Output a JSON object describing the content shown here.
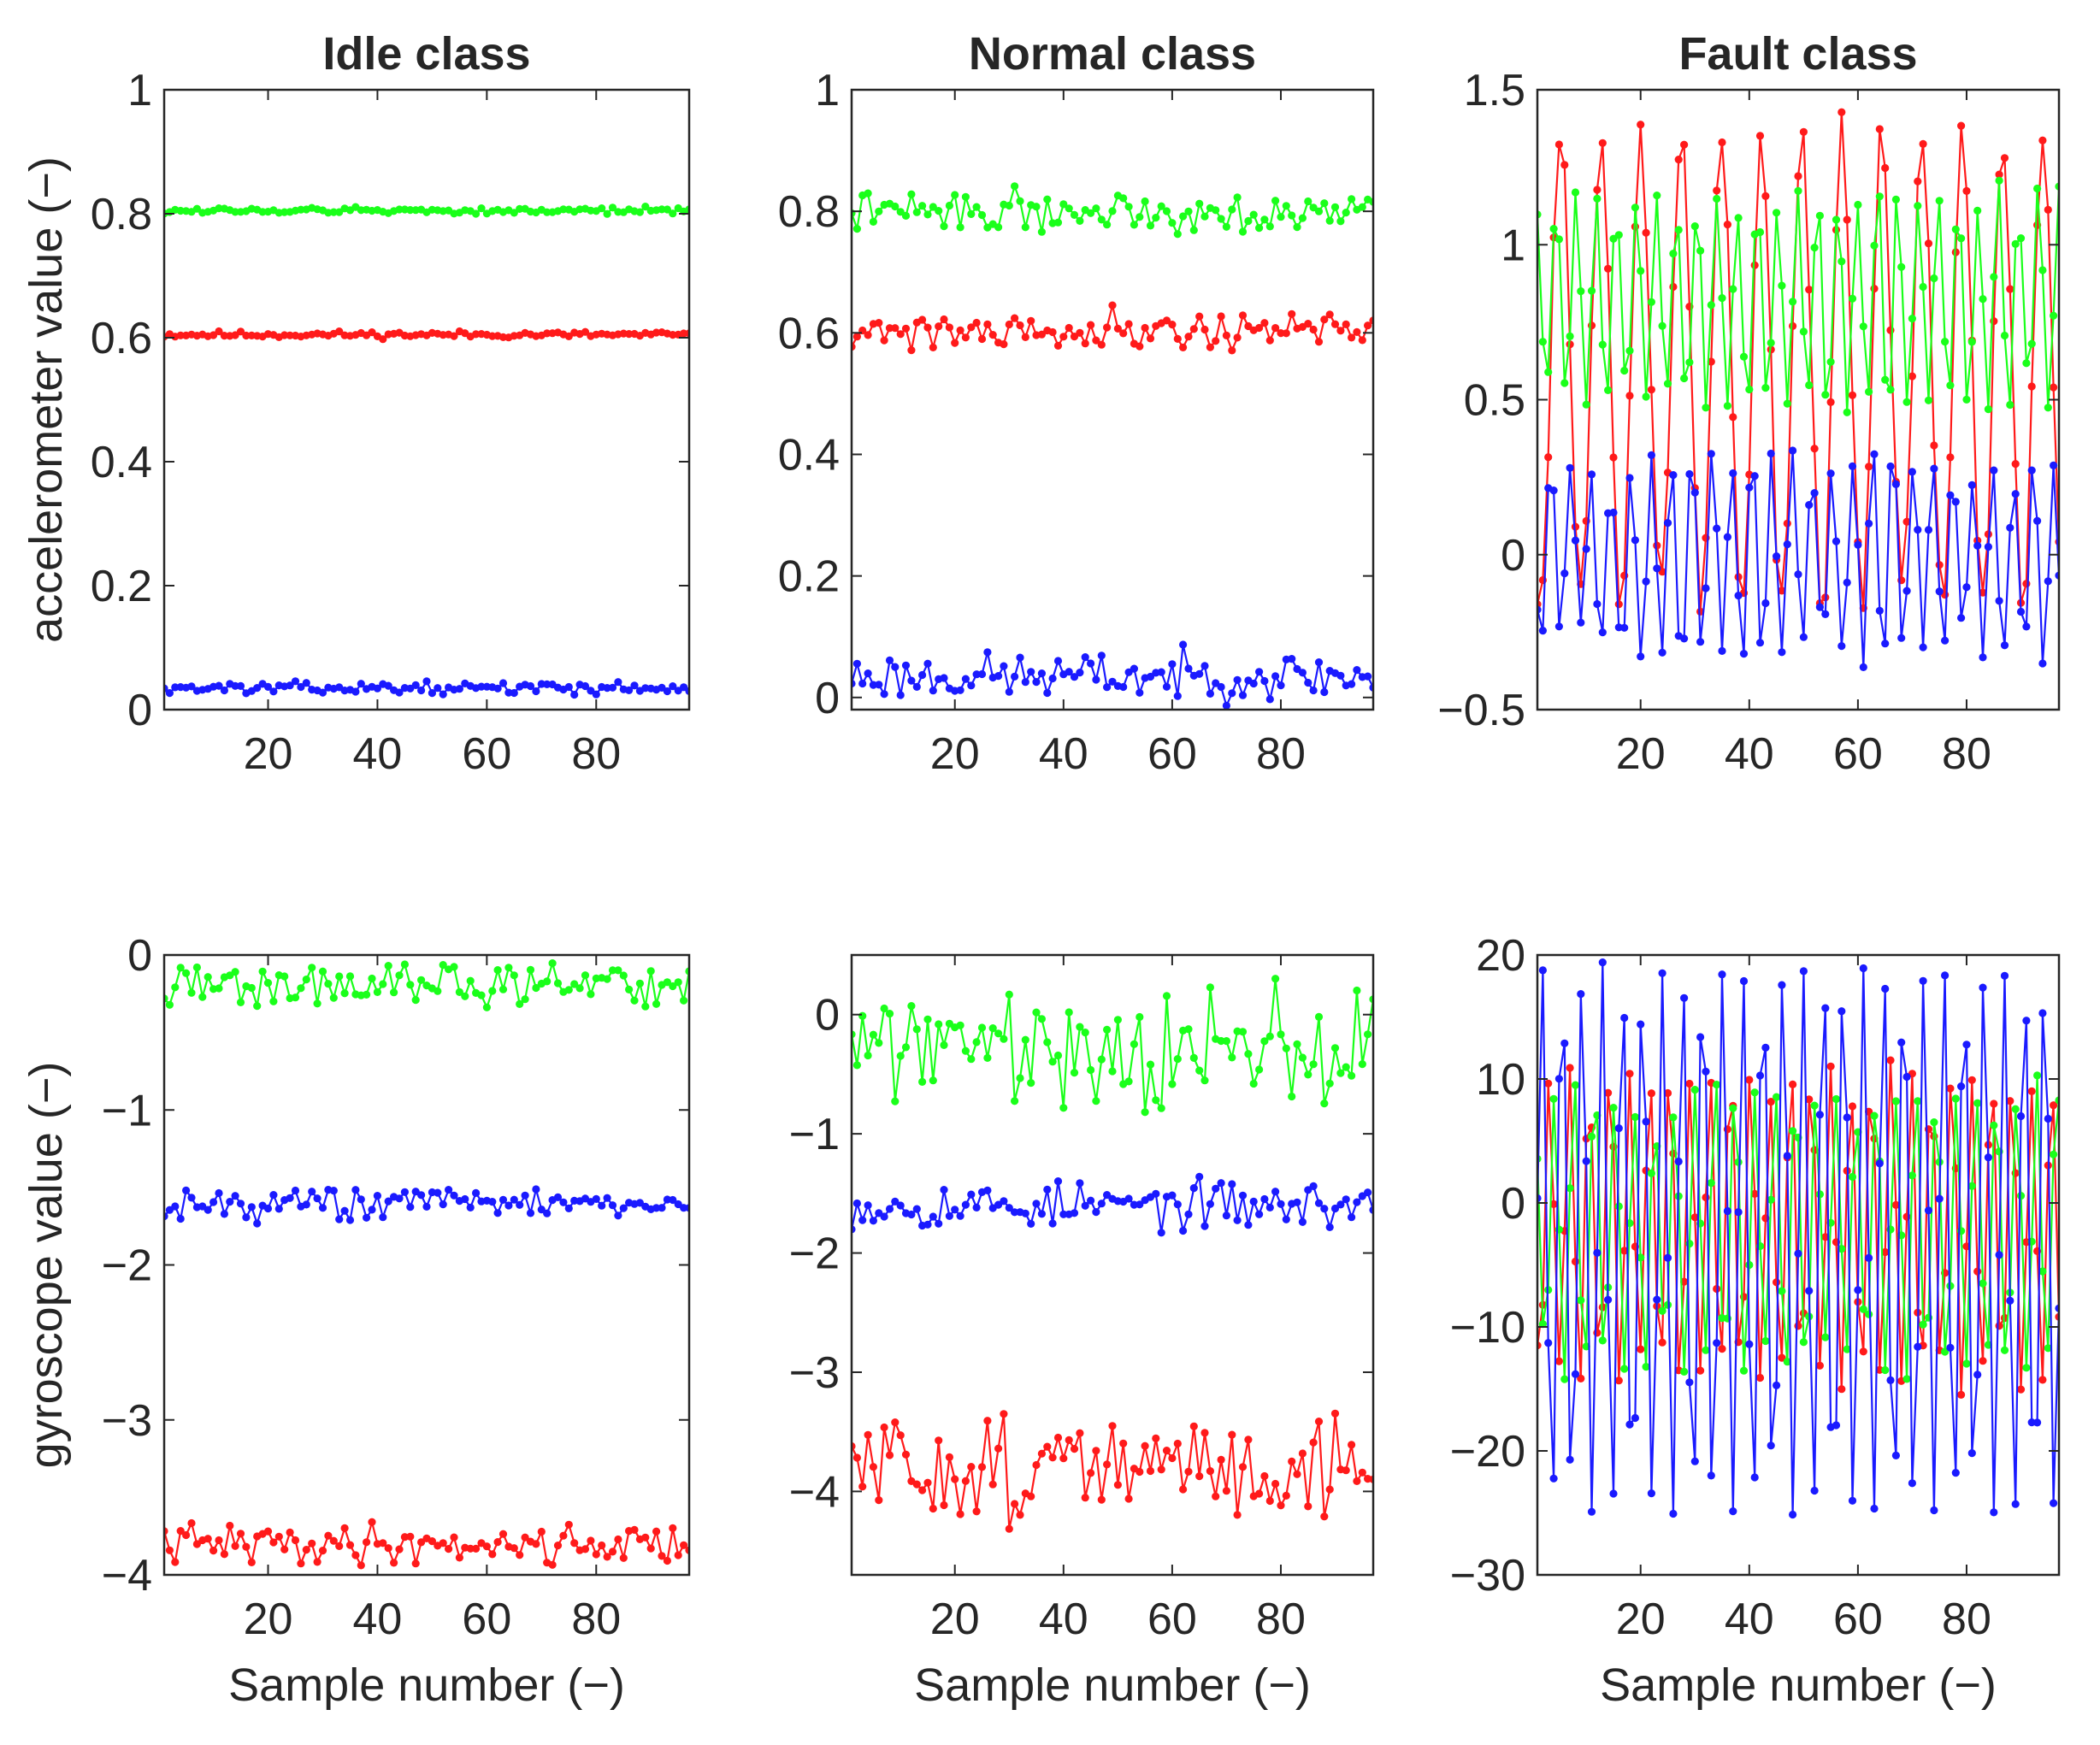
{
  "figure": {
    "colors": {
      "x_axis": "#ff1a1a",
      "y_axis": "#1a1aff",
      "z_axis": "#1aff1a"
    }
  },
  "chart_data": [
    {
      "type": "line",
      "panel": "top-left",
      "title": "Idle class",
      "xlabel": "",
      "ylabel": "accelerometer value (−)",
      "xlim": [
        1,
        97
      ],
      "ylim": [
        0,
        1
      ],
      "xticks": [
        20,
        40,
        60,
        80
      ],
      "xtick_labels": [
        "20",
        "40",
        "60",
        "80"
      ],
      "yticks": [
        0,
        0.2,
        0.4,
        0.6,
        0.8,
        1
      ],
      "ytick_labels": [
        "0",
        "0.2",
        "0.4",
        "0.6",
        "0.8",
        "1"
      ],
      "series": [
        {
          "name": "red",
          "color": "#ff1a1a",
          "generator": "noise",
          "base": 0.605,
          "amp": 0.005,
          "seed": 11
        },
        {
          "name": "green",
          "color": "#1aff1a",
          "generator": "noise",
          "base": 0.805,
          "amp": 0.005,
          "seed": 12
        },
        {
          "name": "blue",
          "color": "#1a1aff",
          "generator": "noise",
          "base": 0.035,
          "amp": 0.008,
          "seed": 13
        }
      ]
    },
    {
      "type": "line",
      "panel": "top-middle",
      "title": "Normal class",
      "xlabel": "",
      "ylabel": "",
      "xlim": [
        1,
        97
      ],
      "ylim": [
        -0.02,
        1
      ],
      "xticks": [
        20,
        40,
        60,
        80
      ],
      "xtick_labels": [
        "20",
        "40",
        "60",
        "80"
      ],
      "yticks": [
        0,
        0.2,
        0.4,
        0.6,
        0.8,
        1
      ],
      "ytick_labels": [
        "0",
        "0.2",
        "0.4",
        "0.6",
        "0.8",
        "1"
      ],
      "series": [
        {
          "name": "red",
          "color": "#ff1a1a",
          "generator": "noise",
          "base": 0.605,
          "amp": 0.03,
          "seed": 21
        },
        {
          "name": "green",
          "color": "#1aff1a",
          "generator": "noise",
          "base": 0.8,
          "amp": 0.03,
          "seed": 22
        },
        {
          "name": "blue",
          "color": "#1a1aff",
          "generator": "noise",
          "base": 0.035,
          "amp": 0.035,
          "seed": 23
        }
      ]
    },
    {
      "type": "line",
      "panel": "top-right",
      "title": "Fault class",
      "xlabel": "",
      "ylabel": "",
      "xlim": [
        1,
        97
      ],
      "ylim": [
        -0.5,
        1.5
      ],
      "xticks": [
        20,
        40,
        60,
        80
      ],
      "xtick_labels": [
        "20",
        "40",
        "60",
        "80"
      ],
      "yticks": [
        -0.5,
        0,
        0.5,
        1,
        1.5
      ],
      "ytick_labels": [
        "−0.5",
        "0",
        "0.5",
        "1",
        "1.5"
      ],
      "series": [
        {
          "name": "red",
          "color": "#ff1a1a",
          "generator": "wave",
          "base": 0.6,
          "amp": 0.75,
          "period": 7.4,
          "phase": 3.4,
          "noise": 0.12,
          "seed": 31
        },
        {
          "name": "green",
          "color": "#1aff1a",
          "generator": "wave",
          "base": 0.82,
          "amp": 0.33,
          "period": 3.7,
          "phase": 0.3,
          "noise": 0.1,
          "seed": 32
        },
        {
          "name": "blue",
          "color": "#1a1aff",
          "generator": "wave",
          "base": 0.0,
          "amp": 0.3,
          "period": 3.7,
          "phase": 1.9,
          "noise": 0.12,
          "seed": 33
        }
      ]
    },
    {
      "type": "line",
      "panel": "bottom-left",
      "title": "",
      "xlabel": "Sample number (−)",
      "ylabel": "gyroscope value (−)",
      "xlim": [
        1,
        97
      ],
      "ylim": [
        -4,
        0
      ],
      "xticks": [
        20,
        40,
        60,
        80
      ],
      "xtick_labels": [
        "20",
        "40",
        "60",
        "80"
      ],
      "yticks": [
        -4,
        -3,
        -2,
        -1,
        0
      ],
      "ytick_labels": [
        "−4",
        "−3",
        "−2",
        "−1",
        "0"
      ],
      "series": [
        {
          "name": "red",
          "color": "#ff1a1a",
          "generator": "noise",
          "base": -3.8,
          "amp": 0.12,
          "seed": 41
        },
        {
          "name": "green",
          "color": "#1aff1a",
          "generator": "noise",
          "base": -0.2,
          "amp": 0.13,
          "seed": 42
        },
        {
          "name": "blue",
          "color": "#1a1aff",
          "generator": "noise",
          "base": -1.6,
          "amp": 0.1,
          "seed": 43
        }
      ]
    },
    {
      "type": "line",
      "panel": "bottom-middle",
      "title": "",
      "xlabel": "Sample number (−)",
      "ylabel": "",
      "xlim": [
        1,
        97
      ],
      "ylim": [
        -4.7,
        0.5
      ],
      "xticks": [
        20,
        40,
        60,
        80
      ],
      "xtick_labels": [
        "20",
        "40",
        "60",
        "80"
      ],
      "yticks": [
        -4,
        -3,
        -2,
        -1,
        0
      ],
      "ytick_labels": [
        "−4",
        "−3",
        "−2",
        "−1",
        "0"
      ],
      "series": [
        {
          "name": "red",
          "color": "#ff1a1a",
          "generator": "noise",
          "base": -3.8,
          "amp": 0.42,
          "seed": 51
        },
        {
          "name": "green",
          "color": "#1aff1a",
          "generator": "noise",
          "base": -0.25,
          "amp": 0.45,
          "seed": 52
        },
        {
          "name": "blue",
          "color": "#1a1aff",
          "generator": "noise",
          "base": -1.6,
          "amp": 0.18,
          "seed": 53
        }
      ]
    },
    {
      "type": "line",
      "panel": "bottom-right",
      "title": "",
      "xlabel": "Sample number (−)",
      "ylabel": "",
      "xlim": [
        1,
        97
      ],
      "ylim": [
        -30,
        20
      ],
      "xticks": [
        20,
        40,
        60,
        80
      ],
      "xtick_labels": [
        "20",
        "40",
        "60",
        "80"
      ],
      "yticks": [
        -30,
        -20,
        -10,
        0,
        10,
        20
      ],
      "ytick_labels": [
        "−30",
        "−20",
        "−10",
        "0",
        "10",
        "20"
      ],
      "series": [
        {
          "name": "red",
          "color": "#ff1a1a",
          "generator": "wave",
          "base": -2,
          "amp": 12,
          "period": 3.7,
          "phase": 2.4,
          "noise": 3,
          "seed": 61
        },
        {
          "name": "green",
          "color": "#1aff1a",
          "generator": "wave",
          "base": -2,
          "amp": 11,
          "period": 3.7,
          "phase": 0.9,
          "noise": 3,
          "seed": 62
        },
        {
          "name": "blue",
          "color": "#1a1aff",
          "generator": "wave",
          "base": -3,
          "amp": 22,
          "period": 3.7,
          "phase": -1.57,
          "noise": 1.2,
          "seed": 63
        }
      ]
    }
  ]
}
